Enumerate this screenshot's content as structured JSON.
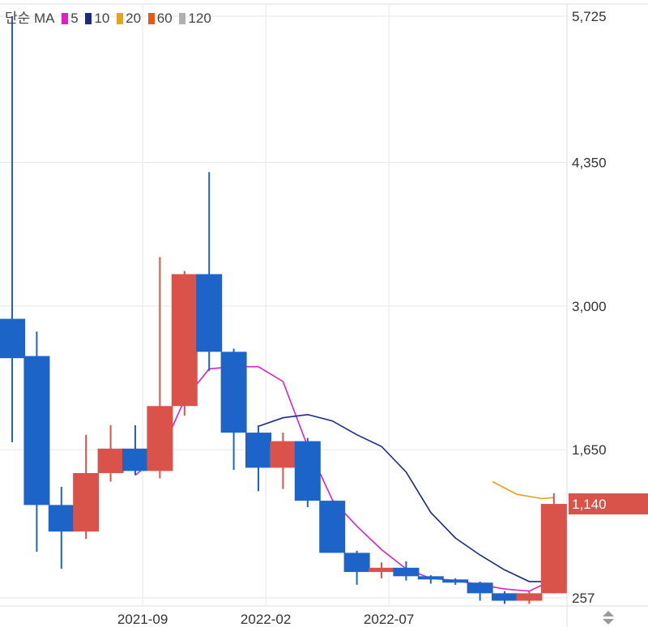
{
  "legend": {
    "label": "단순 MA",
    "items": [
      {
        "name": "5",
        "color": "#e020c0"
      },
      {
        "name": "10",
        "color": "#1a2a8a"
      },
      {
        "name": "20",
        "color": "#e8a418"
      },
      {
        "name": "60",
        "color": "#e85a10"
      },
      {
        "name": "120",
        "color": "#b0b0b0"
      }
    ]
  },
  "colors": {
    "up": "#d9534a",
    "down": "#1c64c8",
    "grid": "#e6e6e6",
    "price_box": "#d9534a"
  },
  "current_price_label": "1,140",
  "chart_data": {
    "type": "candlestick",
    "y_ticks": [
      {
        "value": 5725,
        "label": "5,725"
      },
      {
        "value": 4350,
        "label": "4,350"
      },
      {
        "value": 3000,
        "label": "3,000"
      },
      {
        "value": 1650,
        "label": "1,650"
      },
      {
        "value": 257,
        "label": "257"
      }
    ],
    "x_ticks": [
      {
        "index": 5.3,
        "label": "2021-09"
      },
      {
        "index": 10.3,
        "label": "2022-02"
      },
      {
        "index": 15.3,
        "label": "2022-07"
      }
    ],
    "ylim": [
      200,
      5800
    ],
    "current_price": 1140,
    "candles": [
      {
        "o": 2880,
        "h": 5725,
        "l": 1720,
        "c": 2510
      },
      {
        "o": 2530,
        "h": 2760,
        "l": 690,
        "c": 1130
      },
      {
        "o": 1130,
        "h": 1300,
        "l": 530,
        "c": 880
      },
      {
        "o": 880,
        "h": 1790,
        "l": 810,
        "c": 1430
      },
      {
        "o": 1430,
        "h": 1880,
        "l": 1350,
        "c": 1660
      },
      {
        "o": 1660,
        "h": 1880,
        "l": 1410,
        "c": 1450
      },
      {
        "o": 1450,
        "h": 3460,
        "l": 1380,
        "c": 2060
      },
      {
        "o": 2060,
        "h": 3330,
        "l": 1970,
        "c": 3300
      },
      {
        "o": 3300,
        "h": 4260,
        "l": 2390,
        "c": 2570
      },
      {
        "o": 2570,
        "h": 2600,
        "l": 1460,
        "c": 1810
      },
      {
        "o": 1810,
        "h": 1880,
        "l": 1260,
        "c": 1480
      },
      {
        "o": 1480,
        "h": 1810,
        "l": 1280,
        "c": 1730
      },
      {
        "o": 1730,
        "h": 1760,
        "l": 1110,
        "c": 1170
      },
      {
        "o": 1170,
        "h": 1170,
        "l": 680,
        "c": 680
      },
      {
        "o": 680,
        "h": 700,
        "l": 380,
        "c": 500
      },
      {
        "o": 500,
        "h": 590,
        "l": 440,
        "c": 540
      },
      {
        "o": 540,
        "h": 600,
        "l": 420,
        "c": 460
      },
      {
        "o": 460,
        "h": 470,
        "l": 390,
        "c": 430
      },
      {
        "o": 430,
        "h": 440,
        "l": 380,
        "c": 400
      },
      {
        "o": 400,
        "h": 410,
        "l": 230,
        "c": 300
      },
      {
        "o": 300,
        "h": 320,
        "l": 200,
        "c": 230
      },
      {
        "o": 230,
        "h": 320,
        "l": 200,
        "c": 300
      },
      {
        "o": 300,
        "h": 1240,
        "l": 300,
        "c": 1140
      }
    ],
    "series": [
      {
        "name": "5",
        "color": "#e020c0",
        "points": [
          [
            5,
            1410
          ],
          [
            6,
            1600
          ],
          [
            7,
            2120
          ],
          [
            8,
            2410
          ],
          [
            9,
            2430
          ],
          [
            10,
            2430
          ],
          [
            11,
            2290
          ],
          [
            12,
            1680
          ],
          [
            13,
            1180
          ],
          [
            14,
            930
          ],
          [
            15,
            710
          ],
          [
            16,
            530
          ],
          [
            17,
            440
          ],
          [
            18,
            420
          ],
          [
            19,
            380
          ],
          [
            20,
            340
          ],
          [
            21,
            320
          ],
          [
            22,
            430
          ]
        ]
      },
      {
        "name": "10",
        "color": "#1a2a8a",
        "points": [
          [
            10,
            1870
          ],
          [
            11,
            1950
          ],
          [
            12,
            1980
          ],
          [
            13,
            1920
          ],
          [
            14,
            1790
          ],
          [
            15,
            1680
          ],
          [
            16,
            1440
          ],
          [
            17,
            1060
          ],
          [
            18,
            820
          ],
          [
            19,
            660
          ],
          [
            20,
            520
          ],
          [
            21,
            410
          ],
          [
            22,
            410
          ]
        ]
      },
      {
        "name": "20",
        "color": "#e8a418",
        "points": [
          [
            19.5,
            1350
          ],
          [
            20.5,
            1230
          ],
          [
            21.5,
            1190
          ],
          [
            22,
            1200
          ]
        ]
      }
    ]
  }
}
